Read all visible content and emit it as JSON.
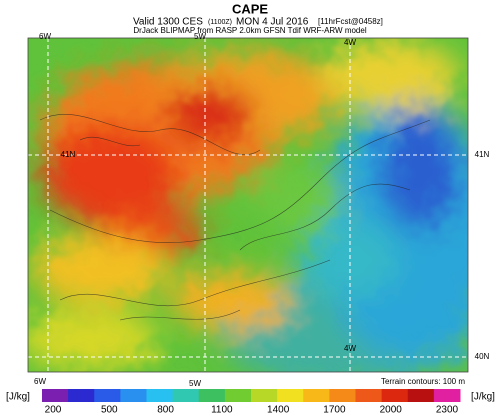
{
  "header": {
    "title": "CAPE",
    "valid": "Valid 1300 CES",
    "utc": "(1100Z)",
    "date": "MON 4 Jul 2016",
    "forecast": "[11hrFcst@0458z]",
    "source": "DrJack BLIPMAP from RASP 2.0km GFSN Tdif WRF-ARW model"
  },
  "map": {
    "lon_labels_top": [
      "6W",
      "5W",
      "4W"
    ],
    "lon_labels_bottom": [
      "6W",
      "5W",
      "4W"
    ],
    "lat_labels_left": [
      "41N"
    ],
    "lat_labels_right": [
      "41N",
      "40N"
    ],
    "note": "Terrain contours: 100 m"
  },
  "colorbar": {
    "unit_left": "[J/kg]",
    "unit_right": "[J/kg]",
    "ticks": [
      200,
      500,
      800,
      1100,
      1400,
      1700,
      2000,
      2300
    ]
  }
}
